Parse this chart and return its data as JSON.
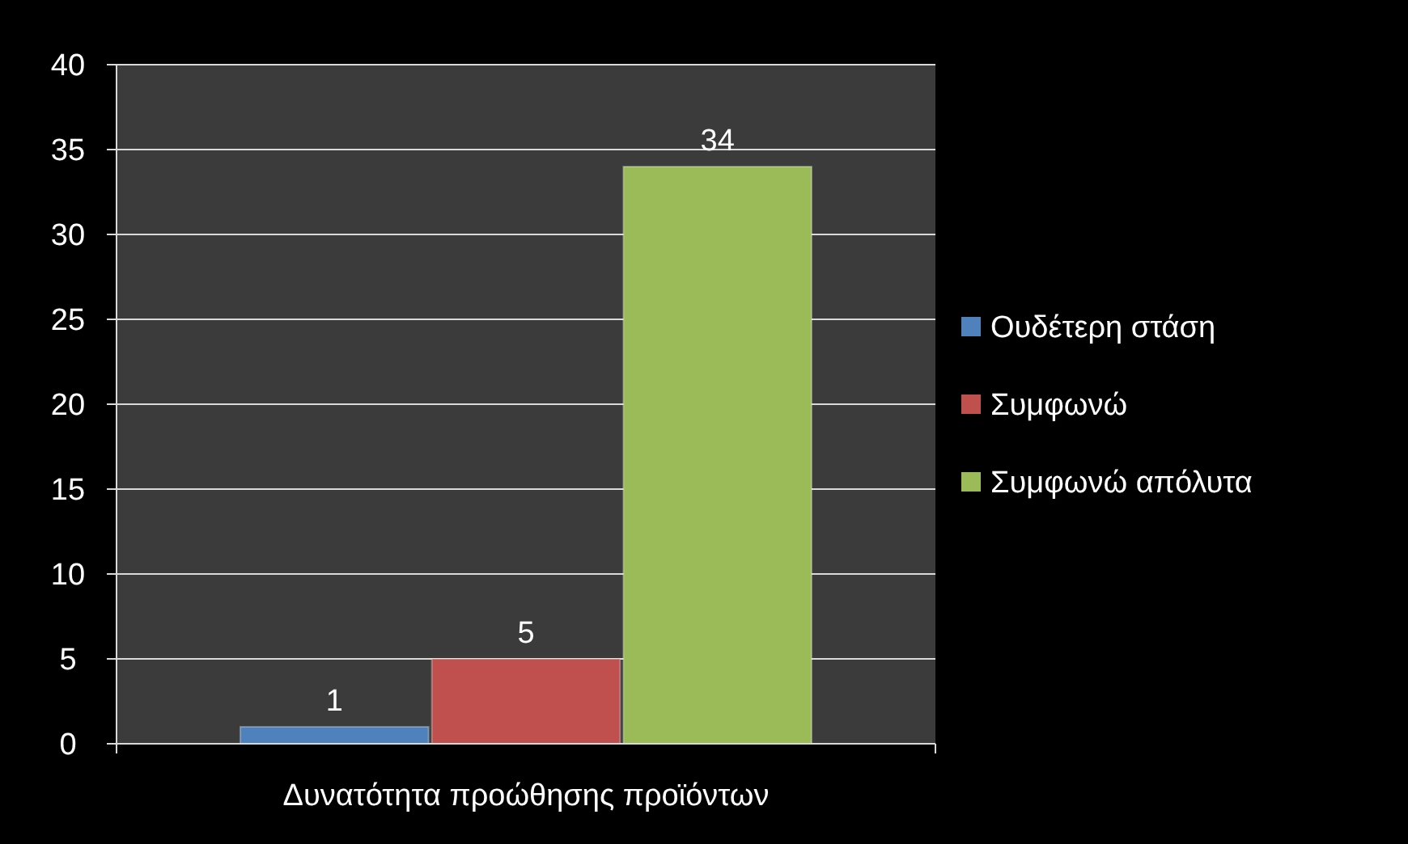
{
  "chart_data": {
    "type": "bar",
    "categories": [
      "Δυνατότητα προώθησης προϊόντων"
    ],
    "series": [
      {
        "name": "Ουδέτερη στάση",
        "color": "#4f81bd",
        "values": [
          1
        ]
      },
      {
        "name": "Συμφωνώ",
        "color": "#c0504d",
        "values": [
          5
        ]
      },
      {
        "name": "Συμφωνώ απόλυτα",
        "color": "#9bbb59",
        "values": [
          34
        ]
      }
    ],
    "ylim": [
      0,
      40
    ],
    "yticks": [
      0,
      5,
      10,
      15,
      20,
      25,
      30,
      35,
      40
    ],
    "grid": "y",
    "legend": "right",
    "data_labels": true
  }
}
